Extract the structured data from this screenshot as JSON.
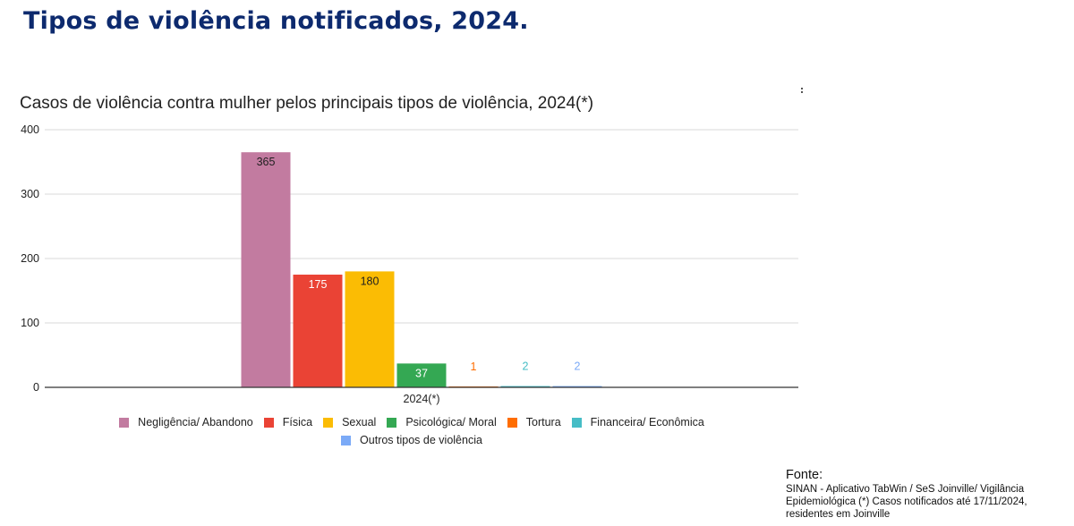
{
  "page": {
    "title": "Tipos de violência notificados, 2024."
  },
  "source": {
    "title": "Fonte:",
    "text": "SINAN - Aplicativo TabWin / SeS Joinville/ Vigilância Epidemiológica  (*) Casos notificados até 17/11/2024, residentes em Joinville"
  },
  "colors": {
    "title": "#0d2a6e",
    "grid": "#d9d9d9",
    "axis": "#333333"
  },
  "chart_data": {
    "type": "bar",
    "title": "Casos de violência contra mulher pelos principais tipos de violência,  2024(*)",
    "categories": [
      "2024(*)"
    ],
    "series": [
      {
        "name": "Negligência/ Abandono",
        "values": [
          365
        ],
        "color": "#c27ba0"
      },
      {
        "name": "Física",
        "values": [
          175
        ],
        "color": "#ea4335"
      },
      {
        "name": "Sexual",
        "values": [
          180
        ],
        "color": "#fbbc04"
      },
      {
        "name": "Psicológica/ Moral",
        "values": [
          37
        ],
        "color": "#34a853"
      },
      {
        "name": "Tortura",
        "values": [
          1
        ],
        "color": "#ff6d01"
      },
      {
        "name": "Financeira/ Econômica",
        "values": [
          2
        ],
        "color": "#46bdc6"
      },
      {
        "name": "Outros tipos de violência",
        "values": [
          2
        ],
        "color": "#7baaf7"
      }
    ],
    "ylim": [
      0,
      400
    ],
    "yticks": [
      0,
      100,
      200,
      300,
      400
    ],
    "grid": true,
    "legend": "bottom"
  }
}
